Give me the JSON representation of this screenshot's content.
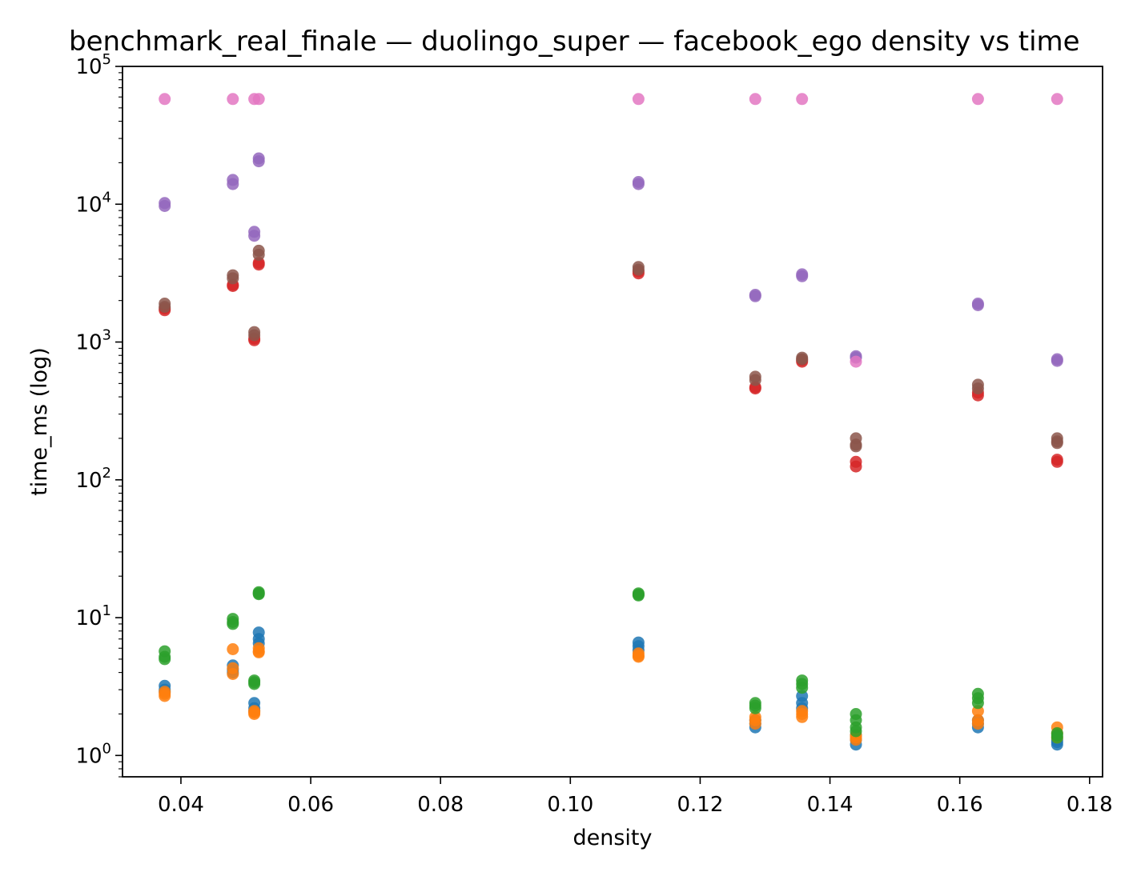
{
  "chart_data": {
    "type": "scatter",
    "title": "benchmark_real_finale — duolingo_super — facebook_ego density vs time",
    "xlabel": "density",
    "ylabel": "time_ms (log)",
    "xlim": [
      0.031,
      0.182
    ],
    "ylim": [
      0.7,
      100000
    ],
    "yscale": "log",
    "grid": false,
    "x_ticks": [
      {
        "value": 0.04,
        "label": "0.04"
      },
      {
        "value": 0.06,
        "label": "0.06"
      },
      {
        "value": 0.08,
        "label": "0.08"
      },
      {
        "value": 0.1,
        "label": "0.10"
      },
      {
        "value": 0.12,
        "label": "0.12"
      },
      {
        "value": 0.14,
        "label": "0.14"
      },
      {
        "value": 0.16,
        "label": "0.16"
      },
      {
        "value": 0.18,
        "label": "0.18"
      }
    ],
    "y_ticks": [
      {
        "value": 1,
        "base": "10",
        "exp": "0"
      },
      {
        "value": 10,
        "base": "10",
        "exp": "1"
      },
      {
        "value": 100,
        "base": "10",
        "exp": "2"
      },
      {
        "value": 1000,
        "base": "10",
        "exp": "3"
      },
      {
        "value": 10000,
        "base": "10",
        "exp": "4"
      },
      {
        "value": 100000,
        "base": "10",
        "exp": "5"
      }
    ],
    "series": [
      {
        "color": "#1f77b4",
        "points": [
          [
            0.0375,
            3.2
          ],
          [
            0.0375,
            3.0
          ],
          [
            0.0375,
            2.9
          ],
          [
            0.048,
            4.5
          ],
          [
            0.048,
            4.2
          ],
          [
            0.048,
            4.0
          ],
          [
            0.0513,
            2.4
          ],
          [
            0.0513,
            2.2
          ],
          [
            0.0513,
            2.1
          ],
          [
            0.052,
            7.8
          ],
          [
            0.052,
            7.0
          ],
          [
            0.052,
            6.5
          ],
          [
            0.1105,
            6.6
          ],
          [
            0.1105,
            6.2
          ],
          [
            0.1105,
            5.8
          ],
          [
            0.1285,
            1.6
          ],
          [
            0.1285,
            1.7
          ],
          [
            0.1285,
            1.8
          ],
          [
            0.1357,
            2.7
          ],
          [
            0.1357,
            2.4
          ],
          [
            0.1357,
            2.2
          ],
          [
            0.144,
            1.2
          ],
          [
            0.144,
            1.3
          ],
          [
            0.144,
            1.4
          ],
          [
            0.1628,
            1.6
          ],
          [
            0.1628,
            1.7
          ],
          [
            0.1628,
            1.8
          ],
          [
            0.175,
            1.2
          ],
          [
            0.175,
            1.3
          ],
          [
            0.175,
            1.25
          ]
        ]
      },
      {
        "color": "#ff7f0e",
        "points": [
          [
            0.0375,
            2.8
          ],
          [
            0.0375,
            2.7
          ],
          [
            0.0375,
            2.9
          ],
          [
            0.048,
            5.9
          ],
          [
            0.048,
            4.3
          ],
          [
            0.048,
            3.9
          ],
          [
            0.0513,
            2.05
          ],
          [
            0.0513,
            2.1
          ],
          [
            0.0513,
            2.0
          ],
          [
            0.052,
            6.0
          ],
          [
            0.052,
            5.7
          ],
          [
            0.052,
            5.6
          ],
          [
            0.1105,
            5.5
          ],
          [
            0.1105,
            5.2
          ],
          [
            0.1105,
            5.3
          ],
          [
            0.1285,
            1.9
          ],
          [
            0.1285,
            1.8
          ],
          [
            0.1285,
            1.7
          ],
          [
            0.1357,
            2.1
          ],
          [
            0.1357,
            2.0
          ],
          [
            0.1357,
            1.9
          ],
          [
            0.144,
            1.35
          ],
          [
            0.144,
            1.3
          ],
          [
            0.144,
            1.4
          ],
          [
            0.1628,
            2.1
          ],
          [
            0.1628,
            1.8
          ],
          [
            0.1628,
            1.7
          ],
          [
            0.175,
            1.6
          ],
          [
            0.175,
            1.45
          ],
          [
            0.175,
            1.35
          ]
        ]
      },
      {
        "color": "#2ca02c",
        "points": [
          [
            0.0375,
            5.7
          ],
          [
            0.0375,
            5.2
          ],
          [
            0.0375,
            5.0
          ],
          [
            0.048,
            9.8
          ],
          [
            0.048,
            9.3
          ],
          [
            0.048,
            9.0
          ],
          [
            0.0513,
            3.5
          ],
          [
            0.0513,
            3.4
          ],
          [
            0.0513,
            3.3
          ],
          [
            0.052,
            15.3
          ],
          [
            0.052,
            15.0
          ],
          [
            0.052,
            14.8
          ],
          [
            0.1105,
            15.0
          ],
          [
            0.1105,
            14.7
          ],
          [
            0.1105,
            14.5
          ],
          [
            0.1285,
            2.4
          ],
          [
            0.1285,
            2.3
          ],
          [
            0.1285,
            2.2
          ],
          [
            0.1357,
            3.5
          ],
          [
            0.1357,
            3.3
          ],
          [
            0.1357,
            3.1
          ],
          [
            0.144,
            2.0
          ],
          [
            0.144,
            1.8
          ],
          [
            0.144,
            1.6
          ],
          [
            0.144,
            1.5
          ],
          [
            0.1628,
            2.8
          ],
          [
            0.1628,
            2.6
          ],
          [
            0.1628,
            2.4
          ],
          [
            0.175,
            1.45
          ],
          [
            0.175,
            1.4
          ],
          [
            0.175,
            1.35
          ]
        ]
      },
      {
        "color": "#d62728",
        "points": [
          [
            0.0375,
            1700
          ],
          [
            0.0375,
            1750
          ],
          [
            0.048,
            2550
          ],
          [
            0.048,
            2600
          ],
          [
            0.0513,
            1030
          ],
          [
            0.0513,
            1060
          ],
          [
            0.052,
            3650
          ],
          [
            0.052,
            3750
          ],
          [
            0.1105,
            3150
          ],
          [
            0.1105,
            3250
          ],
          [
            0.1285,
            460
          ],
          [
            0.1285,
            470
          ],
          [
            0.1357,
            720
          ],
          [
            0.1357,
            740
          ],
          [
            0.144,
            125
          ],
          [
            0.144,
            135
          ],
          [
            0.1628,
            410
          ],
          [
            0.1628,
            430
          ],
          [
            0.175,
            135
          ],
          [
            0.175,
            140
          ]
        ]
      },
      {
        "color": "#9467bd",
        "points": [
          [
            0.0375,
            10200
          ],
          [
            0.0375,
            9700
          ],
          [
            0.048,
            15000
          ],
          [
            0.048,
            14000
          ],
          [
            0.0513,
            6300
          ],
          [
            0.0513,
            5900
          ],
          [
            0.052,
            21500
          ],
          [
            0.052,
            20500
          ],
          [
            0.1105,
            14500
          ],
          [
            0.1105,
            14000
          ],
          [
            0.1285,
            2200
          ],
          [
            0.1285,
            2150
          ],
          [
            0.1357,
            3100
          ],
          [
            0.1357,
            3000
          ],
          [
            0.144,
            790
          ],
          [
            0.144,
            770
          ],
          [
            0.1628,
            1900
          ],
          [
            0.1628,
            1850
          ],
          [
            0.175,
            750
          ],
          [
            0.175,
            730
          ]
        ]
      },
      {
        "color": "#8c564b",
        "points": [
          [
            0.0375,
            1900
          ],
          [
            0.0375,
            1800
          ],
          [
            0.048,
            3050
          ],
          [
            0.048,
            2900
          ],
          [
            0.0513,
            1180
          ],
          [
            0.0513,
            1120
          ],
          [
            0.052,
            4600
          ],
          [
            0.052,
            4300
          ],
          [
            0.1105,
            3500
          ],
          [
            0.1105,
            3350
          ],
          [
            0.1285,
            560
          ],
          [
            0.1285,
            530
          ],
          [
            0.1357,
            770
          ],
          [
            0.1357,
            750
          ],
          [
            0.144,
            200
          ],
          [
            0.144,
            180
          ],
          [
            0.144,
            175
          ],
          [
            0.1628,
            490
          ],
          [
            0.1628,
            460
          ],
          [
            0.175,
            200
          ],
          [
            0.175,
            190
          ],
          [
            0.175,
            185
          ]
        ]
      },
      {
        "color": "#e377c2",
        "points": [
          [
            0.0375,
            58000
          ],
          [
            0.048,
            58000
          ],
          [
            0.0513,
            58000
          ],
          [
            0.052,
            58000
          ],
          [
            0.1105,
            58000
          ],
          [
            0.1285,
            58000
          ],
          [
            0.1357,
            58000
          ],
          [
            0.144,
            720
          ],
          [
            0.1628,
            58000
          ],
          [
            0.175,
            58000
          ]
        ]
      }
    ]
  }
}
